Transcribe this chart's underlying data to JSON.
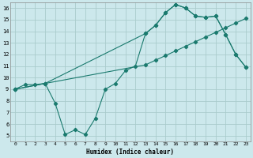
{
  "xlabel": "Humidex (Indice chaleur)",
  "bg_color": "#cce8ec",
  "grid_color": "#aacccc",
  "line_color": "#1a7a6e",
  "xlim": [
    -0.5,
    23.5
  ],
  "ylim": [
    4.5,
    16.5
  ],
  "line1_x": [
    0,
    1,
    2,
    3,
    4,
    5,
    6,
    7,
    8,
    9,
    10,
    11,
    12,
    13,
    14,
    15,
    16,
    17,
    18,
    19,
    20,
    21,
    22,
    23
  ],
  "line1_y": [
    9.0,
    9.4,
    9.4,
    9.5,
    7.8,
    5.1,
    5.5,
    5.1,
    6.5,
    9.0,
    9.5,
    10.6,
    11.0,
    13.8,
    14.5,
    15.6,
    16.3,
    16.0,
    15.3,
    15.2,
    15.3,
    13.7,
    12.0,
    10.9
  ],
  "line2_x": [
    0,
    3,
    13,
    14,
    15,
    16,
    17,
    18,
    19,
    20,
    21,
    22,
    23
  ],
  "line2_y": [
    9.0,
    9.5,
    11.1,
    11.5,
    11.9,
    12.3,
    12.7,
    13.1,
    13.5,
    13.9,
    14.3,
    14.7,
    15.1
  ],
  "line3_x": [
    0,
    3,
    13,
    14,
    15,
    16,
    17,
    18,
    19,
    20,
    21,
    22,
    23
  ],
  "line3_y": [
    9.0,
    9.5,
    13.8,
    14.5,
    15.6,
    16.3,
    16.0,
    15.3,
    15.2,
    15.3,
    13.7,
    12.0,
    10.9
  ],
  "xticks": [
    0,
    1,
    2,
    3,
    4,
    5,
    6,
    7,
    8,
    9,
    10,
    11,
    12,
    13,
    14,
    15,
    16,
    17,
    18,
    19,
    20,
    21,
    22,
    23
  ],
  "yticks": [
    5,
    6,
    7,
    8,
    9,
    10,
    11,
    12,
    13,
    14,
    15,
    16
  ]
}
